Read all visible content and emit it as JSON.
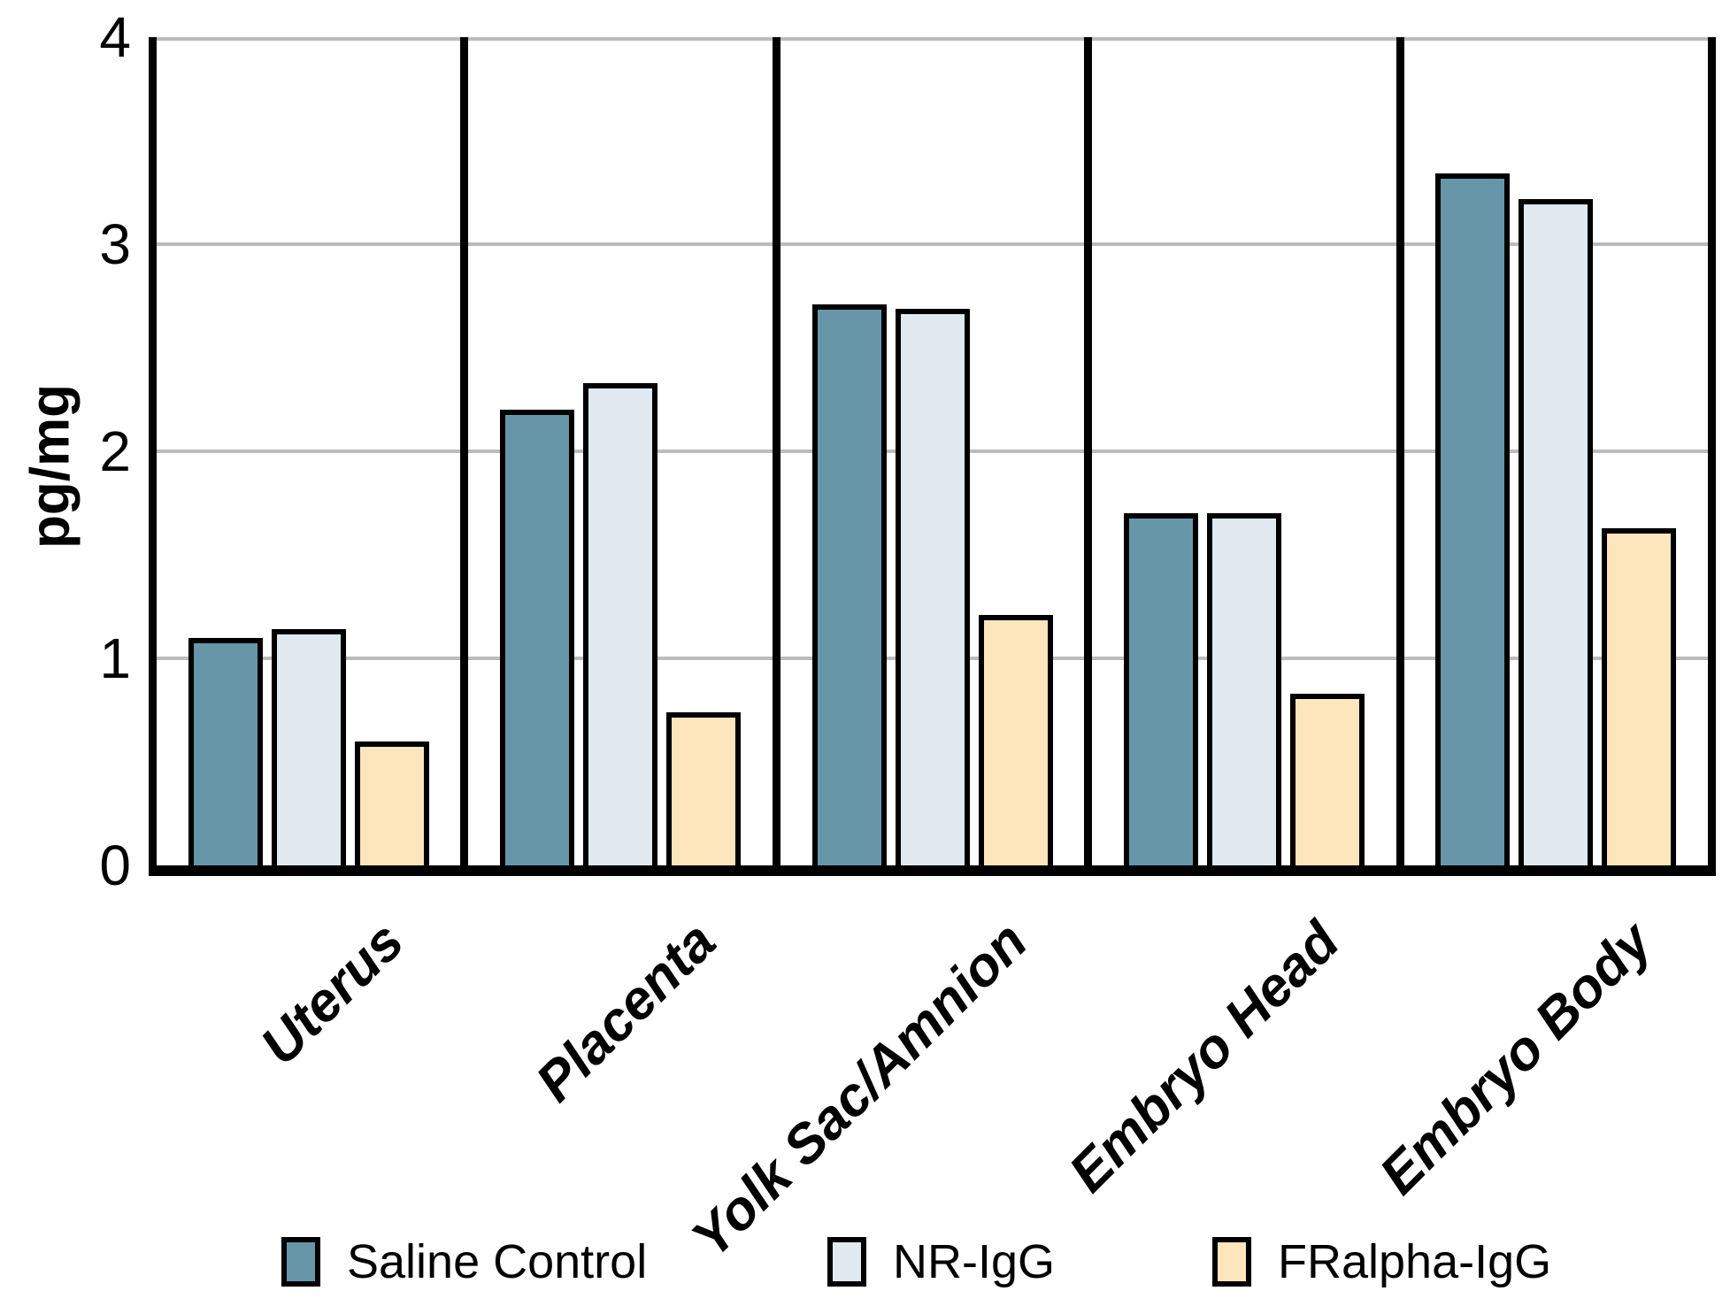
{
  "chart_data": {
    "type": "bar",
    "title": "",
    "ylabel": "pg/mg",
    "xlabel": "",
    "ylim": [
      0,
      4
    ],
    "yticks": [
      0,
      1,
      2,
      3,
      4
    ],
    "grid": "horizontal gray gridlines at y = 1, 2, 3, 4",
    "panel_separators": "thick black vertical lines between category groups",
    "legend_position": "bottom",
    "categories": [
      "Uterus",
      "Placenta",
      "Yolk Sac/Amnion",
      "Embryo Head",
      "Embryo Body"
    ],
    "series": [
      {
        "name": "Saline Control",
        "color": "#6896A9",
        "values": [
          1.1,
          2.2,
          2.71,
          1.7,
          3.34
        ]
      },
      {
        "name": "NR-IgG",
        "color": "#DFE9EF",
        "values": [
          1.14,
          2.33,
          2.69,
          1.7,
          3.22
        ]
      },
      {
        "name": "FRalpha-IgG",
        "color": "#FDE5BC",
        "values": [
          0.6,
          0.74,
          1.21,
          0.83,
          1.63
        ]
      }
    ],
    "colors": {
      "axis": "#000000",
      "gridline": "#BBBBBB",
      "bar_border": "#000000",
      "background": "#FFFFFF"
    }
  }
}
